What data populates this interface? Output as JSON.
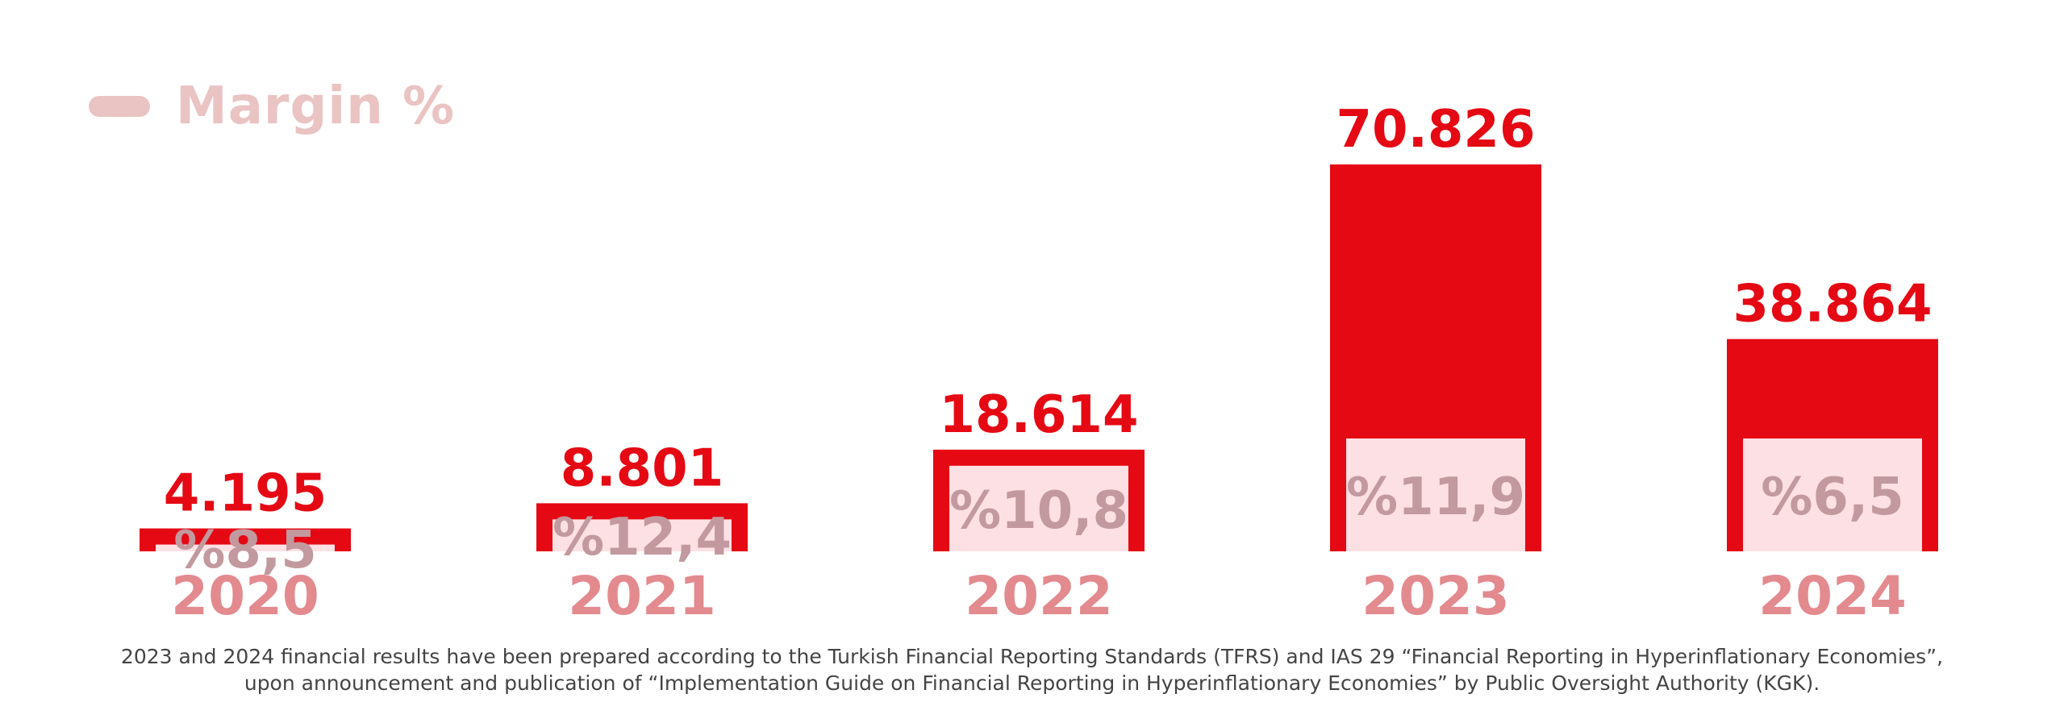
{
  "colors": {
    "bar": "#e50914",
    "inner": "#fde0e4",
    "value_label": "#e50914",
    "margin_label": "#c2999e",
    "year_label": "#e38a8f",
    "legend": "#eac3c3"
  },
  "legend": {
    "label": "Margin %"
  },
  "chart_data": {
    "type": "bar",
    "categories": [
      "2020",
      "2021",
      "2022",
      "2023",
      "2024"
    ],
    "series": [
      {
        "values": [
          4195,
          8801,
          18614,
          70826,
          38864
        ],
        "labels": [
          "4.195",
          "8.801",
          "18.614",
          "70.826",
          "38.864"
        ]
      },
      {
        "name": "Margin %",
        "values": [
          8.5,
          12.4,
          10.8,
          11.9,
          6.5
        ],
        "labels": [
          "%8,5",
          "%12,4",
          "%10,8",
          "%11,9",
          "%6,5"
        ]
      }
    ],
    "legend_position": "top-left",
    "grid": false
  },
  "footnote": {
    "line1": "2023 and 2024 financial results have been prepared according to the Turkish Financial Reporting Standards (TFRS) and IAS 29 “Financial Reporting in Hyperinflationary Economies”,",
    "line2": "upon announcement and publication of “Implementation Guide on Financial Reporting in Hyperinflationary Economies” by Public Oversight Authority (KGK)."
  }
}
